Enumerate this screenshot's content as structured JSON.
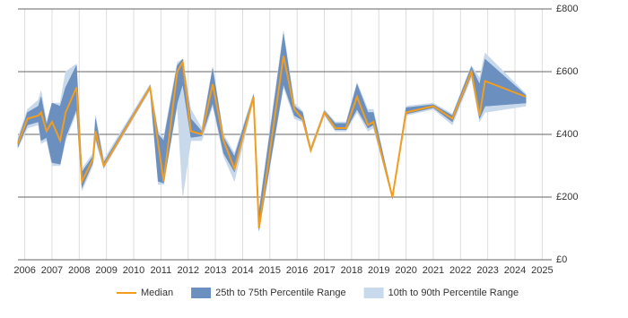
{
  "chart_data": {
    "type": "range-line",
    "x": [
      2005.75,
      2006.1,
      2006.5,
      2006.6,
      2006.8,
      2007.0,
      2007.3,
      2007.5,
      2007.9,
      2008.1,
      2008.5,
      2008.6,
      2008.9,
      2010.6,
      2010.9,
      2011.1,
      2011.6,
      2011.8,
      2012.1,
      2012.5,
      2012.9,
      2013.3,
      2013.7,
      2014.4,
      2014.6,
      2015.5,
      2015.9,
      2016.2,
      2016.5,
      2017.0,
      2017.4,
      2017.8,
      2018.2,
      2018.6,
      2018.8,
      2019.5,
      2020.0,
      2021.0,
      2021.7,
      2022.4,
      2022.7,
      2022.9,
      2024.4
    ],
    "series": [
      {
        "name": "Median",
        "color": "#f29d1d",
        "values": [
          370,
          450,
          460,
          470,
          410,
          440,
          380,
          470,
          550,
          250,
          320,
          410,
          300,
          550,
          370,
          250,
          600,
          630,
          410,
          400,
          560,
          380,
          290,
          520,
          100,
          650,
          480,
          450,
          350,
          470,
          420,
          420,
          520,
          430,
          440,
          200,
          470,
          490,
          450,
          600,
          460,
          570,
          520
        ]
      },
      {
        "name": "25th to 75th Percentile Range",
        "color": "#6b8fbf",
        "lower": [
          360,
          430,
          440,
          380,
          390,
          310,
          305,
          390,
          480,
          230,
          310,
          390,
          295,
          545,
          250,
          245,
          500,
          560,
          390,
          395,
          500,
          340,
          280,
          515,
          95,
          560,
          460,
          445,
          345,
          465,
          415,
          415,
          480,
          420,
          430,
          195,
          465,
          485,
          440,
          590,
          450,
          490,
          500
        ],
        "upper": [
          380,
          470,
          490,
          520,
          430,
          500,
          490,
          550,
          620,
          280,
          330,
          450,
          310,
          555,
          400,
          380,
          620,
          640,
          450,
          410,
          610,
          390,
          330,
          525,
          150,
          720,
          490,
          470,
          355,
          475,
          435,
          435,
          560,
          470,
          470,
          205,
          485,
          495,
          460,
          615,
          560,
          640,
          525
        ]
      },
      {
        "name": "10th to 90th Percentile Range",
        "color": "#c9d9ec",
        "lower": [
          355,
          420,
          430,
          370,
          380,
          300,
          300,
          380,
          470,
          220,
          300,
          380,
          290,
          540,
          240,
          240,
          490,
          200,
          380,
          380,
          490,
          330,
          250,
          510,
          90,
          550,
          450,
          440,
          340,
          460,
          410,
          410,
          470,
          410,
          420,
          195,
          460,
          480,
          430,
          580,
          440,
          470,
          490
        ],
        "upper": [
          390,
          480,
          510,
          540,
          440,
          500,
          500,
          600,
          625,
          290,
          340,
          460,
          320,
          560,
          410,
          390,
          630,
          640,
          480,
          420,
          615,
          400,
          340,
          530,
          160,
          730,
          500,
          475,
          360,
          480,
          440,
          440,
          565,
          480,
          480,
          205,
          490,
          500,
          465,
          620,
          580,
          660,
          530
        ]
      }
    ],
    "xlim": [
      2005.75,
      2025.35
    ],
    "xticks": [
      2006,
      2007,
      2008,
      2009,
      2010,
      2011,
      2012,
      2013,
      2014,
      2015,
      2016,
      2017,
      2018,
      2019,
      2020,
      2021,
      2022,
      2023,
      2024,
      2025
    ],
    "ylim": [
      0,
      800
    ],
    "yticks": [
      {
        "value": 0,
        "label": "£0"
      },
      {
        "value": 200,
        "label": "£200"
      },
      {
        "value": 400,
        "label": "£400"
      },
      {
        "value": 600,
        "label": "£600"
      },
      {
        "value": 800,
        "label": "£800"
      }
    ],
    "grid": true
  }
}
